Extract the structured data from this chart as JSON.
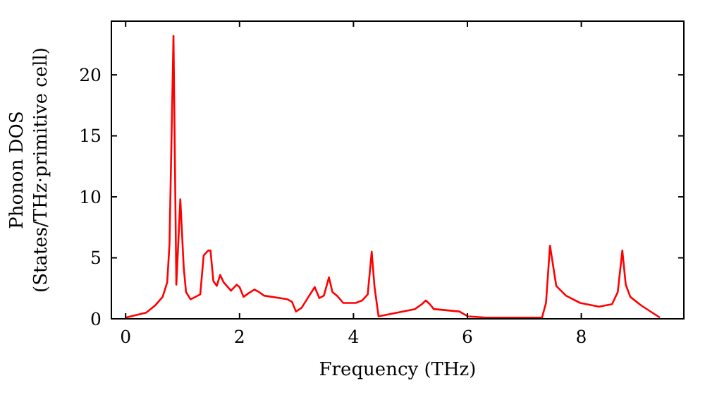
{
  "chart_data": {
    "type": "line",
    "xlabel": "Frequency (THz)",
    "ylabel": "Phonon DOS\n(States/THz·primitive cell)",
    "xlim": [
      -0.25,
      9.8
    ],
    "ylim": [
      0,
      24.4
    ],
    "xticks": [
      0,
      2,
      4,
      6,
      8
    ],
    "yticks": [
      0,
      5,
      10,
      15,
      20
    ],
    "grid": false,
    "marker": "none",
    "line_style": "solid",
    "series": [
      {
        "color": "#ff0000",
        "x": [
          0,
          0.36,
          0.52,
          0.65,
          0.73,
          0.77,
          0.84,
          0.89,
          0.96,
          1.02,
          1.06,
          1.14,
          1.31,
          1.37,
          1.45,
          1.49,
          1.54,
          1.6,
          1.66,
          1.72,
          1.85,
          1.95,
          2.0,
          2.07,
          2.16,
          2.26,
          2.34,
          2.43,
          2.84,
          2.92,
          2.99,
          3.09,
          3.21,
          3.32,
          3.4,
          3.48,
          3.57,
          3.63,
          3.71,
          3.82,
          4.04,
          4.15,
          4.25,
          4.32,
          4.37,
          4.44,
          5.08,
          5.2,
          5.27,
          5.34,
          5.41,
          5.86,
          6.01,
          6.32,
          7.31,
          7.38,
          7.45,
          7.56,
          7.73,
          7.98,
          8.31,
          8.54,
          8.64,
          8.72,
          8.78,
          8.86,
          9.05,
          9.38
        ],
        "values": [
          0.1,
          0.5,
          1.1,
          1.8,
          3.0,
          6.1,
          23.2,
          2.8,
          9.8,
          4.2,
          2.2,
          1.6,
          2.0,
          5.2,
          5.6,
          5.6,
          3.1,
          2.7,
          3.6,
          3.0,
          2.3,
          2.8,
          2.6,
          1.8,
          2.1,
          2.4,
          2.2,
          1.9,
          1.6,
          1.4,
          0.6,
          0.9,
          1.8,
          2.6,
          1.7,
          1.9,
          3.4,
          2.2,
          1.9,
          1.3,
          1.3,
          1.5,
          2.0,
          5.5,
          2.6,
          0.2,
          0.8,
          1.2,
          1.5,
          1.2,
          0.8,
          0.6,
          0.2,
          0.1,
          0.1,
          1.3,
          6.0,
          2.7,
          1.9,
          1.3,
          1.0,
          1.2,
          2.2,
          5.6,
          2.8,
          1.8,
          1.1,
          0.1
        ]
      }
    ]
  }
}
